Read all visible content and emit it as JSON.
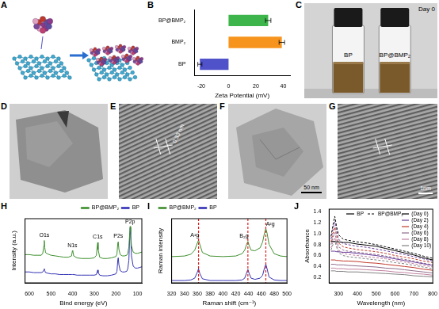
{
  "panels": [
    {
      "label": "A"
    },
    {
      "label": "C",
      "caption": "Day 0",
      "vials": [
        "BP",
        "BP@BMP₂"
      ]
    },
    {
      "label": "D"
    },
    {
      "label": "E",
      "lattice_spacing": "0.33 nm"
    },
    {
      "label": "F",
      "scale_bar": "50 nm"
    },
    {
      "label": "G",
      "scale_bar": "1nm"
    }
  ],
  "chart_data": [
    {
      "label": "B",
      "type": "bar",
      "orientation": "horizontal",
      "categories": [
        "BP@BMP₂",
        "BMP₂",
        "BP"
      ],
      "values": [
        29,
        39,
        -21
      ],
      "errors": [
        2,
        2,
        1.5
      ],
      "colors": [
        "#3db54a",
        "#f7941d",
        "#4f52c9"
      ],
      "x_label": "Zeta Potential (mV)",
      "xlim": [
        -25,
        45
      ],
      "xticks": [
        -20,
        0,
        20,
        40
      ],
      "grid": false
    },
    {
      "label": "H",
      "type": "line",
      "x_label": "Bind energy (eV)",
      "y_label": "Intensity (a.u.)",
      "xlim": [
        620,
        80
      ],
      "xticks": [
        600,
        500,
        400,
        300,
        200,
        100
      ],
      "ylim": [
        0,
        10
      ],
      "tick_labels": "x",
      "grid": false,
      "legend": "upper right",
      "x": [
        620,
        600,
        580,
        560,
        545,
        538,
        533,
        531,
        529,
        525,
        515,
        500,
        480,
        460,
        440,
        420,
        405,
        401,
        399,
        395,
        380,
        360,
        340,
        320,
        300,
        290,
        286,
        284,
        282,
        275,
        260,
        240,
        220,
        200,
        195,
        191,
        189,
        186,
        180,
        170,
        160,
        150,
        145,
        140,
        136,
        134,
        132,
        128,
        120,
        110,
        100,
        90,
        80
      ],
      "series": [
        {
          "name": "BP@BMP₂",
          "color": "#3f8f2f",
          "values": [
            4.4,
            4.4,
            4.3,
            4.3,
            4.3,
            4.6,
            5.8,
            6.6,
            5.5,
            4.7,
            4.5,
            4.3,
            4.2,
            4.1,
            4.0,
            4.0,
            4.2,
            5.0,
            4.9,
            4.2,
            3.9,
            3.8,
            3.8,
            3.8,
            3.9,
            4.3,
            5.8,
            6.3,
            5.2,
            4.0,
            3.8,
            3.8,
            3.9,
            4.1,
            4.5,
            6.2,
            6.4,
            5.2,
            4.4,
            4.2,
            4.2,
            4.3,
            4.6,
            5.6,
            7.8,
            8.8,
            8.0,
            5.8,
            4.8,
            4.6,
            4.6,
            4.7,
            4.8
          ]
        },
        {
          "name": "BP",
          "color": "#3333b5",
          "values": [
            1.7,
            1.7,
            1.6,
            1.6,
            1.6,
            1.7,
            2.0,
            2.2,
            1.9,
            1.6,
            1.5,
            1.4,
            1.4,
            1.3,
            1.3,
            1.3,
            1.3,
            1.3,
            1.3,
            1.3,
            1.2,
            1.2,
            1.2,
            1.2,
            1.2,
            1.3,
            1.8,
            2.0,
            1.6,
            1.2,
            1.1,
            1.1,
            1.2,
            1.4,
            1.8,
            3.6,
            3.9,
            2.8,
            1.9,
            1.7,
            1.7,
            1.8,
            2.2,
            3.5,
            7.2,
            8.6,
            7.6,
            4.2,
            2.6,
            2.3,
            2.3,
            2.4,
            2.5
          ]
        }
      ],
      "annotations": [
        {
          "text": "O1s",
          "x": 531,
          "y": 7.0
        },
        {
          "text": "N1s",
          "x": 401,
          "y": 5.4
        },
        {
          "text": "C1s",
          "x": 284,
          "y": 6.7
        },
        {
          "text": "P2s",
          "x": 189,
          "y": 6.8
        },
        {
          "text": "P2p",
          "x": 134,
          "y": 9.1
        }
      ]
    },
    {
      "label": "I",
      "type": "line",
      "x_label": "Raman shift (cm⁻¹)",
      "y_label": "Raman intensity",
      "xlim": [
        320,
        500
      ],
      "xticks": [
        320,
        340,
        360,
        380,
        400,
        420,
        440,
        460,
        480,
        500
      ],
      "ylim": [
        0,
        11
      ],
      "tick_labels": "x",
      "grid": false,
      "legend": "upper left",
      "x": [
        320,
        340,
        350,
        356,
        360,
        362,
        364,
        368,
        380,
        400,
        420,
        430,
        434,
        437,
        439,
        441,
        444,
        450,
        458,
        462,
        465,
        467,
        469,
        472,
        480,
        490,
        500
      ],
      "series": [
        {
          "name": "BP@BMP₂",
          "color": "#3f8f2f",
          "values": [
            4.5,
            4.6,
            4.9,
            5.6,
            6.8,
            7.3,
            6.6,
            5.2,
            4.6,
            4.5,
            4.6,
            5.0,
            5.6,
            6.6,
            7.1,
            6.4,
            5.6,
            5.5,
            6.0,
            7.0,
            8.6,
            9.3,
            8.5,
            6.6,
            5.0,
            4.6,
            4.5
          ]
        },
        {
          "name": "BP",
          "color": "#3333b5",
          "values": [
            0.4,
            0.4,
            0.5,
            0.8,
            1.8,
            2.4,
            1.6,
            0.7,
            0.4,
            0.4,
            0.4,
            0.5,
            0.8,
            1.7,
            2.3,
            1.6,
            0.8,
            0.6,
            0.8,
            1.3,
            2.6,
            3.2,
            2.4,
            1.0,
            0.5,
            0.4,
            0.4
          ]
        }
      ],
      "reference_lines": [
        362,
        439,
        467
      ],
      "reference_color": "#e02020",
      "annotations": [
        {
          "text": "A¹g",
          "x": 356,
          "y": 7.7
        },
        {
          "text": "B₂g",
          "x": 433,
          "y": 7.5
        },
        {
          "text": "A²g",
          "x": 474,
          "y": 9.6
        }
      ]
    },
    {
      "label": "J",
      "type": "line",
      "x_label": "Wavelength (nm)",
      "y_label": "Absorbance",
      "xlim": [
        250,
        800
      ],
      "xticks": [
        300,
        400,
        500,
        600,
        700,
        800
      ],
      "ylim": [
        0.1,
        1.45
      ],
      "yticks": [
        0.2,
        0.4,
        0.6,
        0.8,
        {
          "value": 1,
          "label": "1.0"
        },
        1.2,
        1.4
      ],
      "grid": false,
      "legend": "upper right",
      "x": [
        260,
        270,
        280,
        290,
        300,
        325,
        350,
        400,
        450,
        500,
        550,
        600,
        650,
        700,
        750,
        800
      ],
      "series": [
        {
          "name": "BP",
          "day": "(Day 0)",
          "color": "#000000",
          "line_style": "solid",
          "values": [
            0.86,
            0.86,
            0.86,
            0.85,
            0.85,
            0.84,
            0.84,
            0.81,
            0.79,
            0.77,
            0.73,
            0.69,
            0.65,
            0.61,
            0.56,
            0.52
          ]
        },
        {
          "name": "BP@BMP₂",
          "day": "(Day 0)",
          "color": "#000000",
          "line_style": "dashed",
          "values": [
            0.95,
            1.15,
            1.32,
            1.12,
            0.98,
            0.9,
            0.88,
            0.85,
            0.83,
            0.8,
            0.76,
            0.72,
            0.68,
            0.64,
            0.59,
            0.55
          ]
        },
        {
          "name": "BP",
          "day": "(Day 2)",
          "color": "#6a3d9a",
          "line_style": "solid",
          "values": [
            0.68,
            0.68,
            0.68,
            0.67,
            0.67,
            0.66,
            0.66,
            0.64,
            0.62,
            0.6,
            0.57,
            0.54,
            0.51,
            0.48,
            0.45,
            0.42
          ]
        },
        {
          "name": "BP@BMP₂",
          "day": "(Day 2)",
          "color": "#6a3d9a",
          "line_style": "dashed",
          "values": [
            0.9,
            1.08,
            1.22,
            1.04,
            0.9,
            0.82,
            0.8,
            0.77,
            0.75,
            0.72,
            0.69,
            0.65,
            0.62,
            0.58,
            0.54,
            0.5
          ]
        },
        {
          "name": "BP",
          "day": "(Day 4)",
          "color": "#c0392b",
          "line_style": "solid",
          "values": [
            0.52,
            0.52,
            0.52,
            0.51,
            0.51,
            0.5,
            0.5,
            0.49,
            0.47,
            0.46,
            0.44,
            0.42,
            0.4,
            0.38,
            0.35,
            0.33
          ]
        },
        {
          "name": "BP@BMP₂",
          "day": "(Day 4)",
          "color": "#c0392b",
          "line_style": "dashed",
          "values": [
            0.85,
            1.0,
            1.12,
            0.96,
            0.83,
            0.76,
            0.74,
            0.71,
            0.69,
            0.67,
            0.64,
            0.6,
            0.57,
            0.54,
            0.5,
            0.47
          ]
        },
        {
          "name": "BP",
          "day": "(Day 6)",
          "color": "#8e6c8a",
          "line_style": "solid",
          "values": [
            0.44,
            0.44,
            0.44,
            0.43,
            0.43,
            0.43,
            0.42,
            0.41,
            0.4,
            0.39,
            0.37,
            0.36,
            0.34,
            0.32,
            0.3,
            0.28
          ]
        },
        {
          "name": "BP@BMP₂",
          "day": "(Day 6)",
          "color": "#8e6c8a",
          "line_style": "dashed",
          "values": [
            0.8,
            0.93,
            1.02,
            0.88,
            0.76,
            0.7,
            0.68,
            0.66,
            0.64,
            0.62,
            0.59,
            0.56,
            0.53,
            0.5,
            0.46,
            0.43
          ]
        },
        {
          "name": "BP",
          "day": "(Day 8)",
          "color": "#c080a0",
          "line_style": "solid",
          "values": [
            0.37,
            0.37,
            0.37,
            0.36,
            0.36,
            0.36,
            0.35,
            0.35,
            0.34,
            0.33,
            0.32,
            0.3,
            0.29,
            0.27,
            0.26,
            0.24
          ]
        },
        {
          "name": "BP@BMP₂",
          "day": "(Day 8)",
          "color": "#c080a0",
          "line_style": "dashed",
          "values": [
            0.74,
            0.85,
            0.93,
            0.8,
            0.7,
            0.64,
            0.62,
            0.6,
            0.58,
            0.56,
            0.54,
            0.51,
            0.48,
            0.45,
            0.42,
            0.39
          ]
        },
        {
          "name": "BP",
          "day": "(Day 10)",
          "color": "#808080",
          "line_style": "solid",
          "values": [
            0.32,
            0.32,
            0.32,
            0.31,
            0.31,
            0.31,
            0.3,
            0.3,
            0.29,
            0.28,
            0.27,
            0.26,
            0.25,
            0.23,
            0.22,
            0.21
          ]
        },
        {
          "name": "BP@BMP₂",
          "day": "(Day 10)",
          "color": "#808080",
          "line_style": "dashed",
          "values": [
            0.7,
            0.8,
            0.87,
            0.75,
            0.65,
            0.6,
            0.58,
            0.56,
            0.54,
            0.52,
            0.5,
            0.47,
            0.45,
            0.42,
            0.39,
            0.36
          ]
        }
      ]
    }
  ]
}
